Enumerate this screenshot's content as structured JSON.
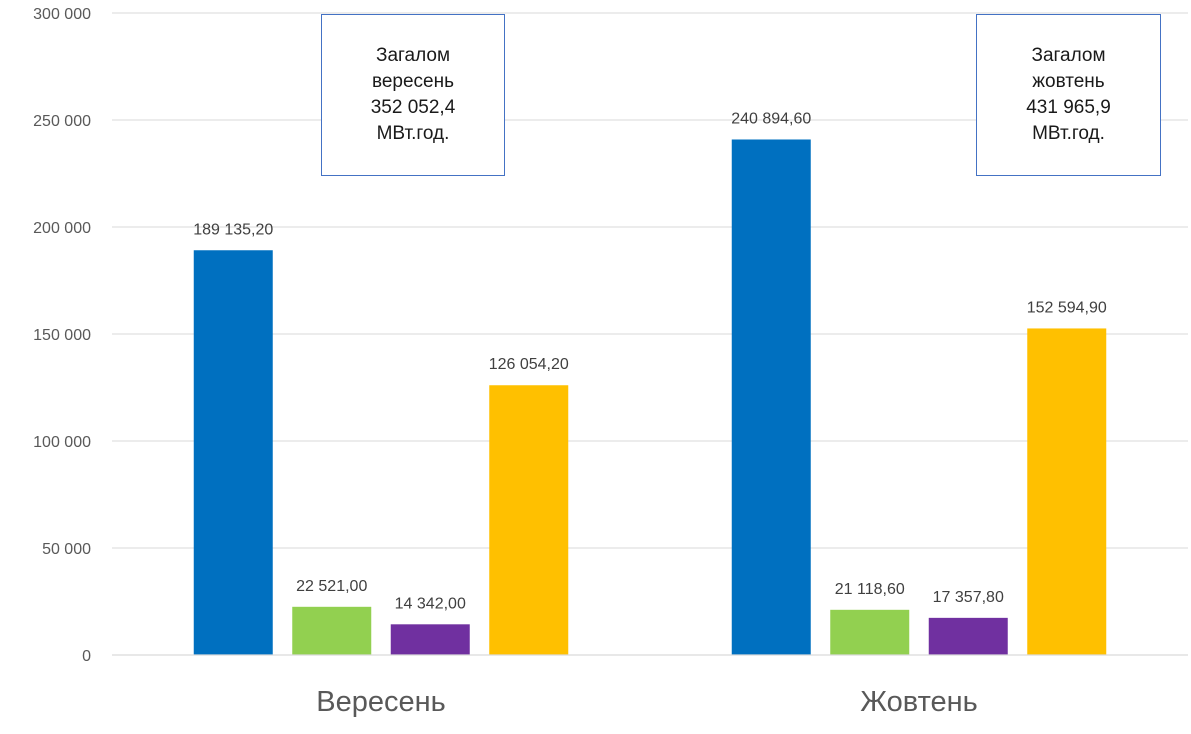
{
  "chart_data": {
    "type": "bar",
    "categories": [
      "Вересень",
      "Жовтень"
    ],
    "series": [
      {
        "values": [
          189135.2,
          240894.6
        ],
        "labels": [
          "189 135,20",
          "240 894,60"
        ],
        "color": "#0070c0"
      },
      {
        "values": [
          22521.0,
          21118.6
        ],
        "labels": [
          "22 521,00",
          "21 118,60"
        ],
        "color": "#92d050"
      },
      {
        "values": [
          14342.0,
          17357.8
        ],
        "labels": [
          "14 342,00",
          "17 357,80"
        ],
        "color": "#7030a0"
      },
      {
        "values": [
          126054.2,
          152594.9
        ],
        "labels": [
          "126 054,20",
          "152 594,90"
        ],
        "color": "#ffc000"
      }
    ],
    "ylim": [
      0,
      300000
    ],
    "yticks": [
      0,
      50000,
      100000,
      150000,
      200000,
      250000,
      300000
    ],
    "ytick_labels": [
      "0",
      "50 000",
      "100 000",
      "150 000",
      "200 000",
      "250 000",
      "300 000"
    ],
    "grid": true,
    "annotations": [
      {
        "lines": [
          "Загалом",
          "вересень",
          "352 052,4",
          "МВт.год."
        ]
      },
      {
        "lines": [
          "Загалом",
          "жовтень",
          "431 965,9",
          "МВт.год."
        ]
      }
    ]
  }
}
